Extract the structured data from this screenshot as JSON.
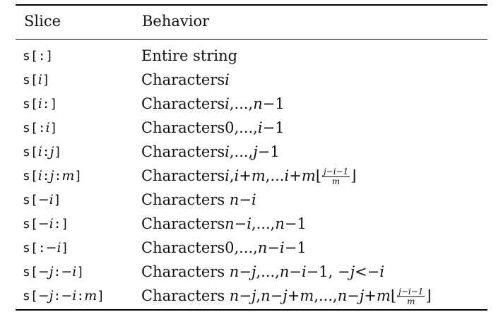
{
  "header": {
    "col1": "Slice",
    "col2": "Behavior"
  },
  "rows": [
    {
      "slice": "s[:]",
      "behavior": "Entire string"
    },
    {
      "slice": "s[i]",
      "behavior": "Charactersi"
    },
    {
      "slice": "s[i:]",
      "behavior": "Charactersi,...,n−1"
    },
    {
      "slice": "s[:i]",
      "behavior": "Characters0,...,i−1"
    },
    {
      "slice": "s[i:j]",
      "behavior": "Charactersi,...,j−1"
    },
    {
      "slice": "s[i:j:m]",
      "behavior": "Charactersi,i+m,...i+m⌊(j−i−1)/m⌋"
    },
    {
      "slice": "s[−i]",
      "behavior": "Characters n−i"
    },
    {
      "slice": "s[−i:]",
      "behavior": "Charactersn−i,...,n−1"
    },
    {
      "slice": "s[:−i]",
      "behavior": "Characters0,...,n−i−1"
    },
    {
      "slice": "s[−j:−i]",
      "behavior": "Characters n−j,...,n−i−1, −j<−i"
    },
    {
      "slice": "s[−j:−i:m]",
      "behavior": "Characters n−j,n−j+m,...,n−j+m⌊(j−i−1)/m⌋"
    }
  ]
}
